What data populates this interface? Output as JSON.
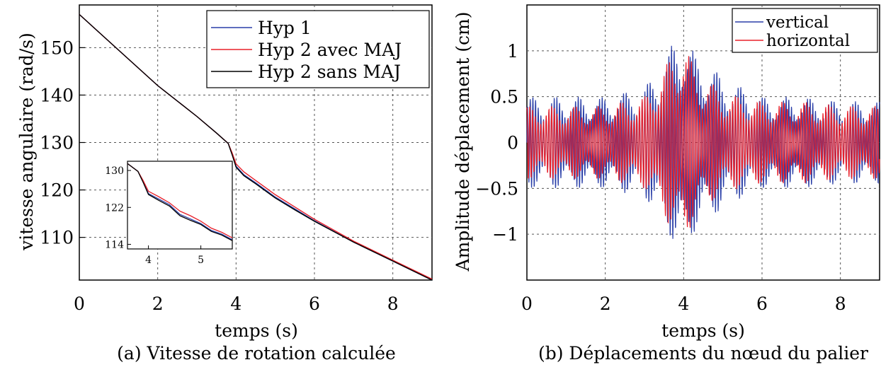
{
  "chart_data": [
    {
      "type": "line",
      "caption": "(a) Vitesse de rotation calculée",
      "xlabel": "temps (s)",
      "ylabel": "vitesse angulaire (rad/s)",
      "xlim": [
        0,
        9
      ],
      "ylim": [
        101,
        159
      ],
      "xticks": [
        0,
        2,
        4,
        6,
        8
      ],
      "yticks": [
        110,
        120,
        130,
        140,
        150
      ],
      "grid": true,
      "legend": "top-right",
      "series": [
        {
          "name": "Hyp 1",
          "color": "#2a3fa8",
          "x": [
            0,
            1,
            2,
            3,
            3.5,
            3.8,
            3.9,
            4.0,
            4.2,
            4.5,
            5.0,
            5.5,
            6.0,
            7.0,
            8.0,
            9.0
          ],
          "y": [
            157,
            149.5,
            142,
            135.5,
            132,
            129.8,
            127.5,
            125,
            123.2,
            121.5,
            118.5,
            116,
            113.5,
            109,
            105,
            101
          ]
        },
        {
          "name": "Hyp 2 avec MAJ",
          "color": "#e8202a",
          "x": [
            0,
            1,
            2,
            3,
            3.5,
            3.8,
            3.9,
            4.0,
            4.2,
            4.5,
            5.0,
            5.5,
            6.0,
            7.0,
            8.0,
            9.0
          ],
          "y": [
            157,
            149.5,
            142,
            135.5,
            132,
            129.8,
            127.8,
            125.5,
            123.8,
            122,
            119,
            116.4,
            113.8,
            109.2,
            105.2,
            101.2
          ]
        },
        {
          "name": "Hyp 2 sans MAJ",
          "color": "#000000",
          "x": [
            0,
            1,
            2,
            3,
            3.5,
            3.8,
            3.9,
            4.0,
            4.2,
            4.5,
            5.0,
            5.5,
            6.0,
            7.0,
            8.0,
            9.0
          ],
          "y": [
            157,
            149.5,
            142,
            135.5,
            132,
            129.8,
            127.4,
            124.8,
            123,
            121.3,
            118.3,
            115.8,
            113.4,
            109,
            105,
            101
          ]
        }
      ],
      "inset": {
        "xlim": [
          3.6,
          5.6
        ],
        "ylim": [
          113,
          132
        ],
        "xticks": [
          4,
          5
        ],
        "yticks": [
          114,
          122,
          130
        ],
        "series_x": [
          3.6,
          3.8,
          3.9,
          4.0,
          4.2,
          4.4,
          4.6,
          4.8,
          5.0,
          5.2,
          5.4,
          5.6
        ],
        "series_y": [
          [
            131.5,
            129.8,
            127.5,
            125,
            123.8,
            122.6,
            120.5,
            119.5,
            118.5,
            117,
            116.2,
            115
          ],
          [
            131.5,
            129.8,
            127.8,
            125.5,
            124.3,
            123,
            121.2,
            120.2,
            119,
            117.5,
            116.6,
            115.4
          ],
          [
            131.5,
            129.8,
            127.4,
            124.8,
            123.5,
            122.3,
            120.2,
            119.2,
            118.3,
            116.8,
            116,
            114.8
          ]
        ]
      }
    },
    {
      "type": "line",
      "caption": "(b) Déplacements du nœud du palier",
      "xlabel": "temps (s)",
      "ylabel": "Amplitude déplacement (cm)",
      "xlim": [
        0,
        9
      ],
      "ylim": [
        -1.5,
        1.5
      ],
      "xticks": [
        0,
        2,
        4,
        6,
        8
      ],
      "yticks": [
        -1,
        -0.5,
        0,
        0.5,
        1
      ],
      "ytick_labels": [
        "−1",
        "−0.5",
        "0",
        "0.5",
        "1"
      ],
      "grid": true,
      "legend": "top-right",
      "series": [
        {
          "name": "vertical",
          "color": "#2a3fa8",
          "envelope_t": [
            0,
            1,
            2,
            3,
            3.5,
            3.8,
            4.0,
            4.3,
            4.6,
            5.0,
            6.0,
            7.0,
            8.0,
            9.0
          ],
          "envelope_amp": [
            0.5,
            0.5,
            0.5,
            0.6,
            0.9,
            1.15,
            1.25,
            0.95,
            0.9,
            0.7,
            0.5,
            0.5,
            0.45,
            0.45
          ]
        },
        {
          "name": "horizontal",
          "color": "#e8202a",
          "envelope_t": [
            0,
            1,
            2,
            3,
            3.5,
            3.8,
            4.0,
            4.3,
            4.6,
            5.0,
            6.0,
            7.0,
            8.0,
            9.0
          ],
          "envelope_amp": [
            0.4,
            0.4,
            0.4,
            0.5,
            0.8,
            1.05,
            1.1,
            0.8,
            0.7,
            0.55,
            0.45,
            0.45,
            0.4,
            0.4
          ]
        }
      ]
    }
  ]
}
